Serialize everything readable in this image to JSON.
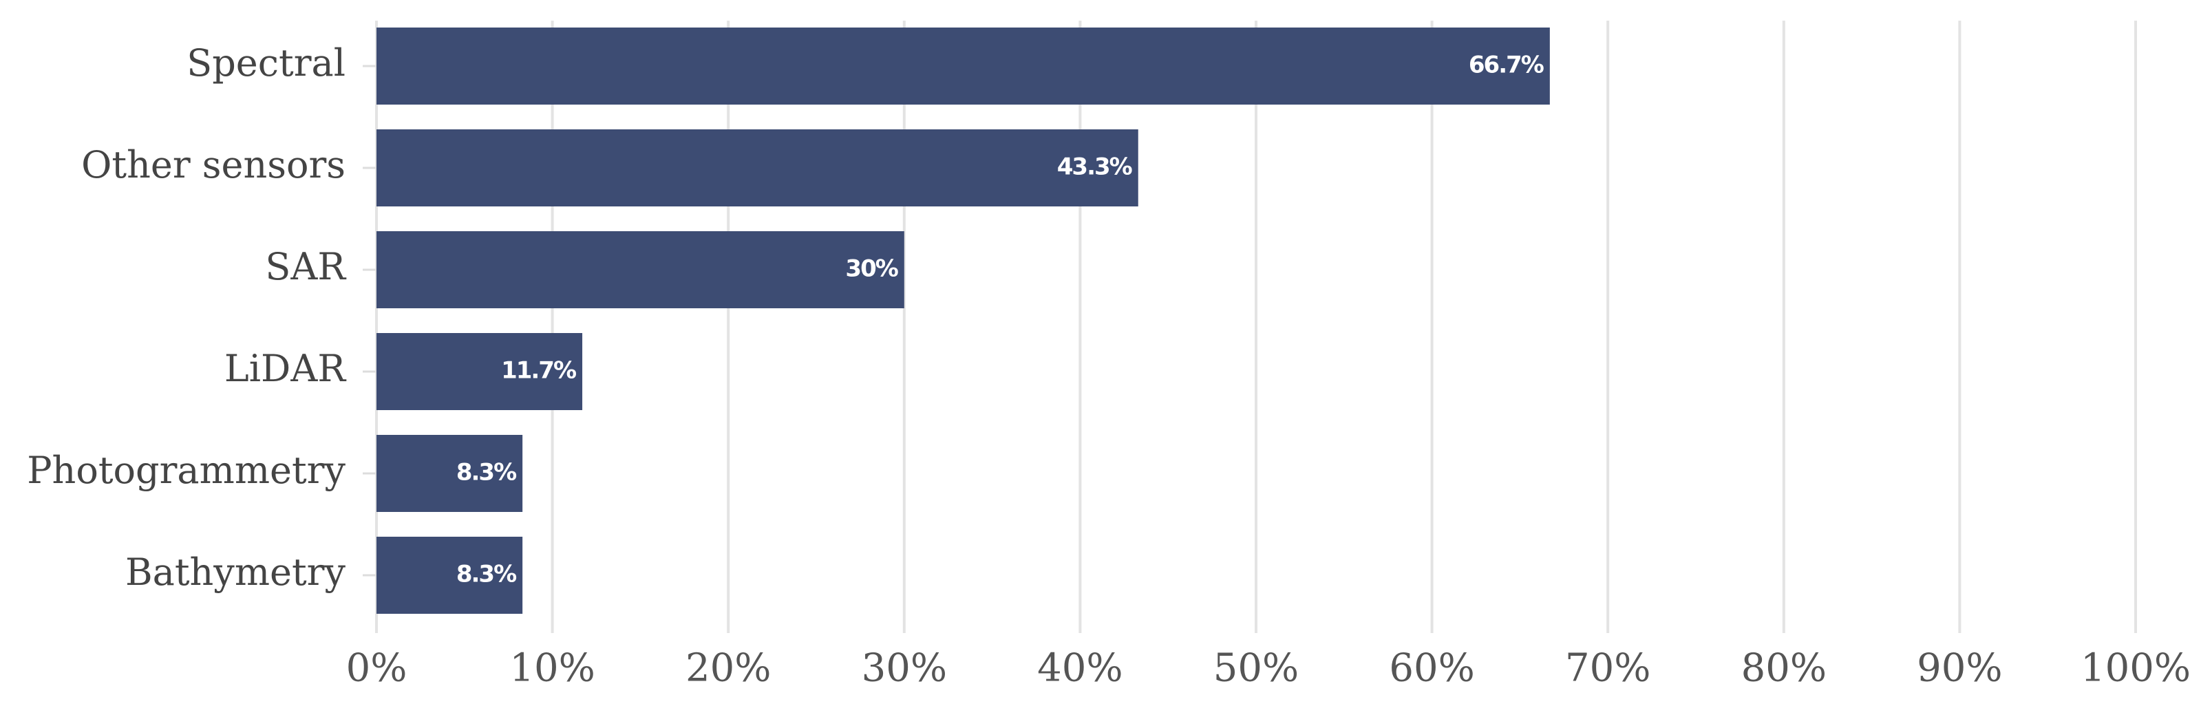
{
  "chart_data": {
    "type": "hbar",
    "categories": [
      "Spectral",
      "Other sensors",
      "SAR",
      "LiDAR",
      "Photogrammetry",
      "Bathymetry"
    ],
    "values": [
      66.7,
      43.3,
      30,
      11.7,
      8.3,
      8.3
    ],
    "value_labels": [
      "66.7%",
      "43.3%",
      "30%",
      "11.7%",
      "8.3%",
      "8.3%"
    ],
    "color": "#3d4c73",
    "xlim": [
      0,
      100
    ],
    "xticks": [
      {
        "value": 0,
        "label": "0%"
      },
      {
        "value": 10,
        "label": "10%"
      },
      {
        "value": 20,
        "label": "20%"
      },
      {
        "value": 30,
        "label": "30%"
      },
      {
        "value": 40,
        "label": "40%"
      },
      {
        "value": 50,
        "label": "50%"
      },
      {
        "value": 60,
        "label": "60%"
      },
      {
        "value": 70,
        "label": "70%"
      },
      {
        "value": 80,
        "label": "80%"
      },
      {
        "value": 90,
        "label": "90%"
      },
      {
        "value": 100,
        "label": "100%"
      }
    ],
    "grid": true
  }
}
